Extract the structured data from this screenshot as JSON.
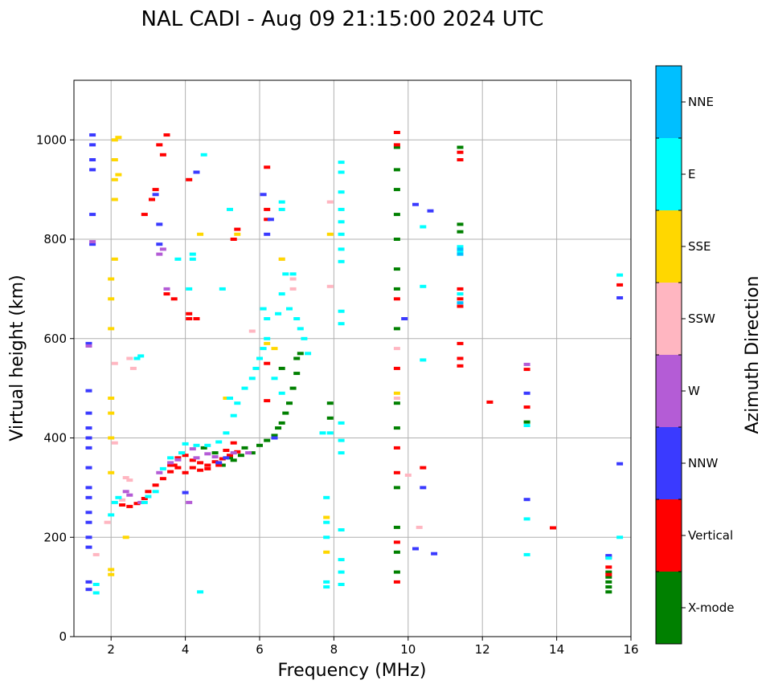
{
  "chart_data": {
    "type": "scatter",
    "title": "NAL CADI - Aug 09 21:15:00 2024 UTC",
    "xlabel": "Frequency (MHz)",
    "ylabel": "Virtual height (km)",
    "xlim": [
      1,
      16
    ],
    "ylim": [
      0,
      1120
    ],
    "xticks": [
      2,
      4,
      6,
      8,
      10,
      12,
      14,
      16
    ],
    "yticks": [
      0,
      200,
      400,
      600,
      800,
      1000
    ],
    "grid": true,
    "colorbar": {
      "label": "Azimuth Direction",
      "categories": [
        {
          "name": "X-mode",
          "color": "#008000"
        },
        {
          "name": "Vertical",
          "color": "#ff0000"
        },
        {
          "name": "NNW",
          "color": "#3a3aff"
        },
        {
          "name": "W",
          "color": "#b45cd6"
        },
        {
          "name": "SSW",
          "color": "#ffb6c1"
        },
        {
          "name": "SSE",
          "color": "#ffd700"
        },
        {
          "name": "E",
          "color": "#00ffff"
        },
        {
          "name": "NNE",
          "color": "#00bfff"
        }
      ]
    },
    "series": [
      {
        "name": "X-mode",
        "points": [
          [
            4.5,
            380
          ],
          [
            4.8,
            370
          ],
          [
            5.2,
            360
          ],
          [
            5.5,
            365
          ],
          [
            5.6,
            380
          ],
          [
            5.8,
            370
          ],
          [
            6.0,
            385
          ],
          [
            6.2,
            395
          ],
          [
            6.4,
            405
          ],
          [
            6.5,
            420
          ],
          [
            6.6,
            430
          ],
          [
            6.7,
            450
          ],
          [
            6.8,
            470
          ],
          [
            6.9,
            500
          ],
          [
            7.0,
            530
          ],
          [
            7.0,
            560
          ],
          [
            7.1,
            570
          ],
          [
            5.0,
            345
          ],
          [
            5.3,
            355
          ],
          [
            9.7,
            985
          ],
          [
            9.7,
            940
          ],
          [
            9.7,
            900
          ],
          [
            9.7,
            850
          ],
          [
            9.7,
            800
          ],
          [
            9.7,
            740
          ],
          [
            9.7,
            700
          ],
          [
            9.7,
            620
          ],
          [
            9.7,
            470
          ],
          [
            9.7,
            420
          ],
          [
            9.7,
            300
          ],
          [
            9.7,
            220
          ],
          [
            9.7,
            170
          ],
          [
            9.7,
            130
          ],
          [
            11.4,
            830
          ],
          [
            11.4,
            815
          ],
          [
            11.4,
            985
          ],
          [
            13.2,
            432
          ],
          [
            15.4,
            120
          ],
          [
            15.4,
            110
          ],
          [
            15.4,
            100
          ],
          [
            15.4,
            90
          ],
          [
            15.4,
            130
          ],
          [
            7.9,
            470
          ],
          [
            7.9,
            440
          ],
          [
            6.6,
            540
          ]
        ]
      },
      {
        "name": "Vertical",
        "points": [
          [
            2.3,
            265
          ],
          [
            2.5,
            262
          ],
          [
            2.7,
            268
          ],
          [
            2.9,
            278
          ],
          [
            3.0,
            292
          ],
          [
            3.2,
            305
          ],
          [
            3.4,
            318
          ],
          [
            3.6,
            332
          ],
          [
            3.7,
            345
          ],
          [
            3.8,
            360
          ],
          [
            4.0,
            365
          ],
          [
            4.2,
            355
          ],
          [
            4.4,
            350
          ],
          [
            4.6,
            345
          ],
          [
            4.8,
            352
          ],
          [
            5.0,
            358
          ],
          [
            5.2,
            365
          ],
          [
            5.4,
            372
          ],
          [
            3.6,
            345
          ],
          [
            3.8,
            340
          ],
          [
            4.0,
            330
          ],
          [
            4.2,
            340
          ],
          [
            4.4,
            335
          ],
          [
            4.6,
            338
          ],
          [
            4.9,
            345
          ],
          [
            5.1,
            375
          ],
          [
            5.3,
            390
          ],
          [
            4.1,
            650
          ],
          [
            4.1,
            640
          ],
          [
            4.3,
            640
          ],
          [
            3.3,
            990
          ],
          [
            3.4,
            970
          ],
          [
            3.5,
            1010
          ],
          [
            3.2,
            900
          ],
          [
            3.1,
            880
          ],
          [
            2.9,
            850
          ],
          [
            4.1,
            920
          ],
          [
            6.2,
            840
          ],
          [
            6.2,
            860
          ],
          [
            6.2,
            945
          ],
          [
            6.2,
            550
          ],
          [
            6.2,
            475
          ],
          [
            5.4,
            820
          ],
          [
            5.3,
            800
          ],
          [
            3.5,
            690
          ],
          [
            3.7,
            680
          ],
          [
            11.4,
            700
          ],
          [
            11.4,
            680
          ],
          [
            11.4,
            665
          ],
          [
            11.4,
            960
          ],
          [
            11.4,
            975
          ],
          [
            11.4,
            590
          ],
          [
            11.4,
            560
          ],
          [
            11.4,
            545
          ],
          [
            9.7,
            1015
          ],
          [
            9.7,
            990
          ],
          [
            9.7,
            680
          ],
          [
            9.7,
            540
          ],
          [
            9.7,
            380
          ],
          [
            9.7,
            330
          ],
          [
            9.7,
            190
          ],
          [
            9.7,
            110
          ],
          [
            10.4,
            340
          ],
          [
            12.2,
            472
          ],
          [
            13.2,
            538
          ],
          [
            13.2,
            462
          ],
          [
            13.9,
            219
          ],
          [
            15.7,
            708
          ],
          [
            15.4,
            160
          ],
          [
            15.4,
            140
          ],
          [
            15.4,
            125
          ]
        ]
      },
      {
        "name": "NNW",
        "points": [
          [
            1.5,
            1010
          ],
          [
            1.5,
            990
          ],
          [
            1.5,
            960
          ],
          [
            1.5,
            940
          ],
          [
            1.5,
            850
          ],
          [
            1.5,
            790
          ],
          [
            1.4,
            590
          ],
          [
            1.4,
            495
          ],
          [
            1.4,
            450
          ],
          [
            1.4,
            420
          ],
          [
            1.4,
            400
          ],
          [
            1.4,
            380
          ],
          [
            1.4,
            340
          ],
          [
            1.4,
            300
          ],
          [
            1.4,
            280
          ],
          [
            1.4,
            250
          ],
          [
            1.4,
            230
          ],
          [
            1.4,
            200
          ],
          [
            1.4,
            180
          ],
          [
            1.4,
            110
          ],
          [
            1.4,
            95
          ],
          [
            3.2,
            890
          ],
          [
            3.3,
            790
          ],
          [
            3.3,
            830
          ],
          [
            4.3,
            935
          ],
          [
            6.1,
            890
          ],
          [
            6.2,
            810
          ],
          [
            6.3,
            840
          ],
          [
            4.9,
            350
          ],
          [
            5.1,
            360
          ],
          [
            6.4,
            400
          ],
          [
            4.0,
            290
          ],
          [
            10.2,
            870
          ],
          [
            10.6,
            857
          ],
          [
            10.4,
            300
          ],
          [
            10.2,
            177
          ],
          [
            10.7,
            167
          ],
          [
            9.9,
            640
          ],
          [
            13.2,
            490
          ],
          [
            13.2,
            276
          ],
          [
            15.7,
            682
          ],
          [
            15.7,
            348
          ],
          [
            15.4,
            163
          ]
        ]
      },
      {
        "name": "W",
        "points": [
          [
            2.4,
            292
          ],
          [
            2.5,
            285
          ],
          [
            2.8,
            270
          ],
          [
            3.3,
            330
          ],
          [
            3.6,
            350
          ],
          [
            3.8,
            356
          ],
          [
            4.3,
            360
          ],
          [
            4.6,
            368
          ],
          [
            4.8,
            362
          ],
          [
            5.3,
            370
          ],
          [
            5.7,
            370
          ],
          [
            4.2,
            378
          ],
          [
            3.3,
            770
          ],
          [
            3.5,
            700
          ],
          [
            3.4,
            780
          ],
          [
            1.5,
            795
          ],
          [
            1.4,
            585
          ],
          [
            13.2,
            548
          ],
          [
            4.1,
            270
          ]
        ]
      },
      {
        "name": "SSW",
        "points": [
          [
            2.4,
            320
          ],
          [
            2.5,
            315
          ],
          [
            2.3,
            275
          ],
          [
            2.6,
            540
          ],
          [
            2.5,
            560
          ],
          [
            2.1,
            550
          ],
          [
            2.1,
            390
          ],
          [
            1.9,
            230
          ],
          [
            1.6,
            165
          ],
          [
            7.9,
            875
          ],
          [
            7.9,
            705
          ],
          [
            9.7,
            580
          ],
          [
            9.7,
            480
          ],
          [
            10.3,
            220
          ],
          [
            10.0,
            325
          ],
          [
            6.9,
            720
          ],
          [
            6.9,
            700
          ],
          [
            6.6,
            760
          ],
          [
            5.8,
            615
          ]
        ]
      },
      {
        "name": "SSE",
        "points": [
          [
            2.1,
            1000
          ],
          [
            2.1,
            960
          ],
          [
            2.1,
            920
          ],
          [
            2.1,
            880
          ],
          [
            2.1,
            760
          ],
          [
            2.0,
            720
          ],
          [
            2.0,
            680
          ],
          [
            2.0,
            620
          ],
          [
            2.0,
            480
          ],
          [
            2.0,
            450
          ],
          [
            2.0,
            400
          ],
          [
            2.0,
            330
          ],
          [
            2.0,
            135
          ],
          [
            2.0,
            125
          ],
          [
            2.2,
            1005
          ],
          [
            2.2,
            930
          ],
          [
            2.4,
            200
          ],
          [
            4.4,
            810
          ],
          [
            5.1,
            480
          ],
          [
            6.2,
            590
          ],
          [
            6.6,
            760
          ],
          [
            6.4,
            580
          ],
          [
            7.9,
            810
          ],
          [
            7.8,
            240
          ],
          [
            7.8,
            170
          ],
          [
            9.7,
            490
          ],
          [
            5.4,
            810
          ]
        ]
      },
      {
        "name": "E",
        "points": [
          [
            1.6,
            105
          ],
          [
            1.6,
            88
          ],
          [
            2.0,
            245
          ],
          [
            2.1,
            270
          ],
          [
            2.2,
            280
          ],
          [
            2.8,
            565
          ],
          [
            2.7,
            560
          ],
          [
            2.9,
            270
          ],
          [
            3.0,
            282
          ],
          [
            3.2,
            292
          ],
          [
            3.4,
            338
          ],
          [
            3.6,
            360
          ],
          [
            3.9,
            370
          ],
          [
            4.0,
            388
          ],
          [
            4.3,
            385
          ],
          [
            4.6,
            385
          ],
          [
            4.9,
            392
          ],
          [
            5.1,
            410
          ],
          [
            5.3,
            445
          ],
          [
            5.4,
            470
          ],
          [
            5.6,
            500
          ],
          [
            5.8,
            520
          ],
          [
            5.9,
            540
          ],
          [
            6.0,
            560
          ],
          [
            6.1,
            580
          ],
          [
            6.2,
            600
          ],
          [
            6.2,
            640
          ],
          [
            6.1,
            660
          ],
          [
            6.6,
            690
          ],
          [
            6.8,
            660
          ],
          [
            7.0,
            640
          ],
          [
            7.1,
            620
          ],
          [
            7.2,
            600
          ],
          [
            7.3,
            570
          ],
          [
            6.7,
            730
          ],
          [
            6.9,
            730
          ],
          [
            6.5,
            650
          ],
          [
            6.4,
            520
          ],
          [
            6.6,
            490
          ],
          [
            5.2,
            480
          ],
          [
            4.5,
            970
          ],
          [
            4.2,
            770
          ],
          [
            4.1,
            700
          ],
          [
            4.2,
            760
          ],
          [
            3.8,
            760
          ],
          [
            4.4,
            90
          ],
          [
            5.0,
            700
          ],
          [
            5.2,
            860
          ],
          [
            6.6,
            860
          ],
          [
            6.6,
            875
          ],
          [
            7.8,
            280
          ],
          [
            7.8,
            230
          ],
          [
            7.8,
            200
          ],
          [
            7.8,
            110
          ],
          [
            7.8,
            100
          ],
          [
            8.2,
            955
          ],
          [
            8.2,
            935
          ],
          [
            8.2,
            895
          ],
          [
            8.2,
            860
          ],
          [
            8.2,
            835
          ],
          [
            8.2,
            810
          ],
          [
            8.2,
            780
          ],
          [
            8.2,
            755
          ],
          [
            8.2,
            655
          ],
          [
            8.2,
            630
          ],
          [
            8.2,
            430
          ],
          [
            8.2,
            395
          ],
          [
            8.2,
            370
          ],
          [
            8.2,
            215
          ],
          [
            8.2,
            155
          ],
          [
            8.2,
            130
          ],
          [
            8.2,
            105
          ],
          [
            7.7,
            410
          ],
          [
            7.9,
            410
          ],
          [
            10.4,
            825
          ],
          [
            10.4,
            705
          ],
          [
            10.4,
            557
          ],
          [
            11.4,
            785
          ],
          [
            11.4,
            775
          ],
          [
            11.4,
            690
          ],
          [
            13.2,
            425
          ],
          [
            13.2,
            237
          ],
          [
            13.2,
            165
          ],
          [
            15.7,
            728
          ],
          [
            15.7,
            200
          ],
          [
            15.4,
            158
          ]
        ]
      },
      {
        "name": "NNE",
        "points": [
          [
            11.4,
            780
          ],
          [
            11.4,
            770
          ],
          [
            11.4,
            672
          ]
        ]
      }
    ]
  }
}
